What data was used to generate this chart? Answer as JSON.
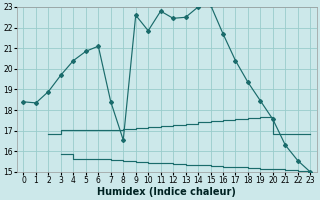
{
  "xlabel": "Humidex (Indice chaleur)",
  "bg_color": "#cce8ea",
  "grid_color": "#99cccc",
  "line_color": "#1a6b6b",
  "xlim": [
    -0.5,
    23.5
  ],
  "ylim": [
    15,
    23
  ],
  "xticks": [
    0,
    1,
    2,
    3,
    4,
    5,
    6,
    7,
    8,
    9,
    10,
    11,
    12,
    13,
    14,
    15,
    16,
    17,
    18,
    19,
    20,
    21,
    22,
    23
  ],
  "yticks": [
    15,
    16,
    17,
    18,
    19,
    20,
    21,
    22,
    23
  ],
  "line1_x": [
    0,
    1,
    2,
    3,
    4,
    5,
    6,
    7,
    8,
    9,
    10,
    11,
    12,
    13,
    14,
    15,
    16,
    17,
    18,
    19,
    20,
    21,
    22,
    23
  ],
  "line1_y": [
    18.4,
    18.35,
    18.9,
    19.7,
    20.4,
    20.85,
    21.1,
    18.4,
    16.55,
    22.6,
    21.85,
    22.8,
    22.45,
    22.5,
    23.0,
    23.1,
    21.7,
    20.4,
    19.35,
    18.45,
    17.55,
    16.3,
    15.55,
    15.0
  ],
  "line2_x": [
    2,
    3,
    4,
    5,
    6,
    7,
    8,
    9,
    10,
    11,
    12,
    13,
    14,
    15,
    16,
    17,
    18,
    19,
    20,
    21,
    22,
    23
  ],
  "line2_y": [
    16.85,
    17.05,
    17.05,
    17.05,
    17.05,
    17.05,
    17.1,
    17.15,
    17.2,
    17.25,
    17.3,
    17.35,
    17.4,
    17.45,
    17.5,
    17.55,
    17.6,
    17.65,
    16.85,
    16.85,
    16.85,
    16.85
  ],
  "line3_x": [
    3,
    4,
    5,
    6,
    7,
    8,
    9,
    10,
    11,
    12,
    13,
    14,
    15,
    16,
    17,
    18,
    19,
    20,
    21,
    22,
    23
  ],
  "line3_y": [
    15.85,
    15.65,
    15.65,
    15.65,
    15.6,
    15.55,
    15.5,
    15.45,
    15.42,
    15.38,
    15.35,
    15.32,
    15.28,
    15.25,
    15.22,
    15.18,
    15.15,
    15.12,
    15.08,
    15.05,
    15.0
  ]
}
